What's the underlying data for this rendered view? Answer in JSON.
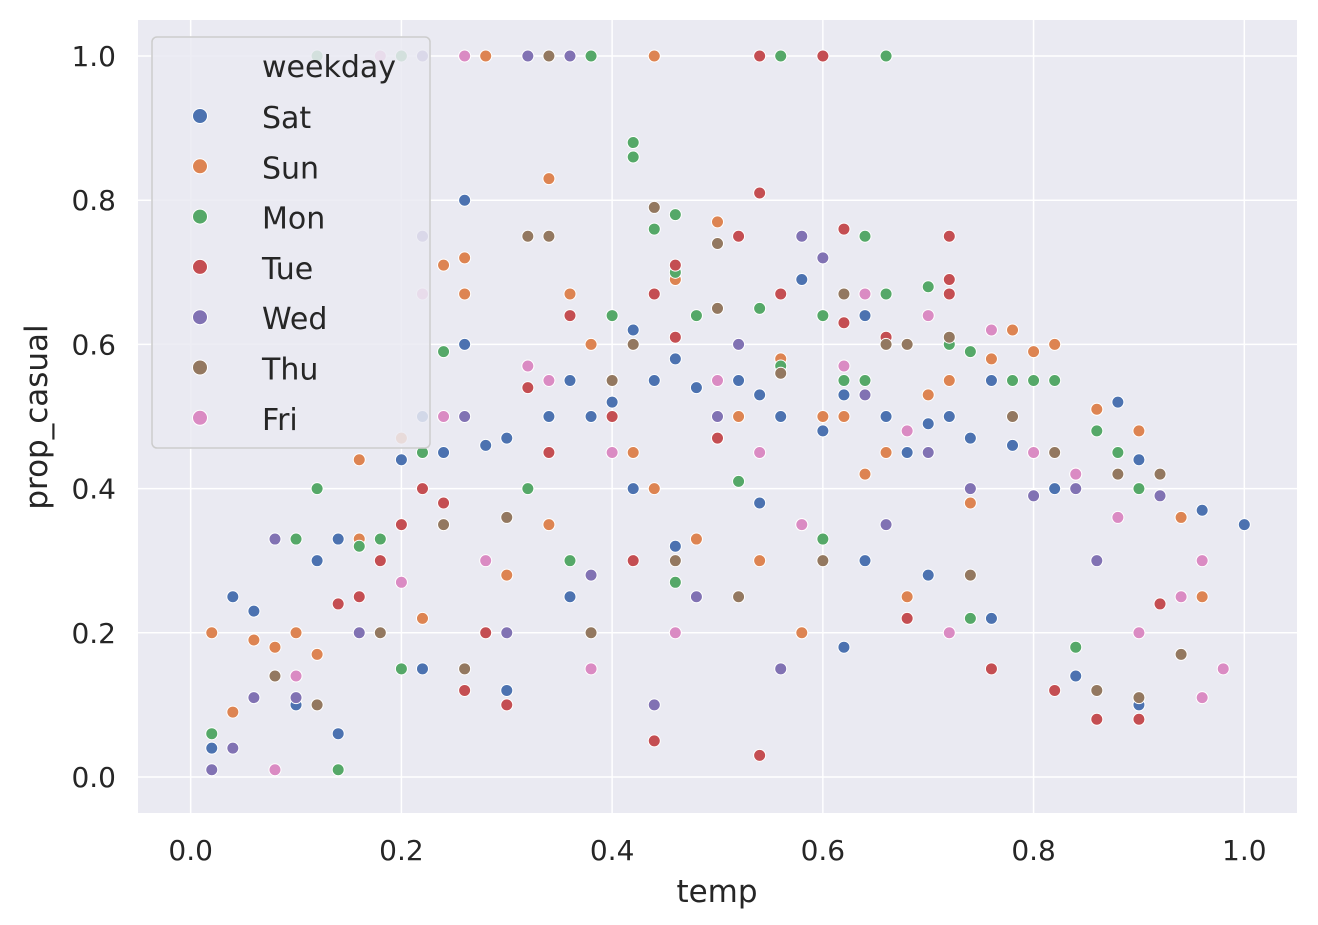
{
  "chart_data": {
    "type": "scatter",
    "title": "",
    "xlabel": "temp",
    "ylabel": "prop_casual",
    "xlim": [
      -0.05,
      1.05
    ],
    "ylim": [
      -0.05,
      1.05
    ],
    "xticks": [
      "0.0",
      "0.2",
      "0.4",
      "0.6",
      "0.8",
      "1.0"
    ],
    "xtick_values": [
      0,
      0.2,
      0.4,
      0.6,
      0.8,
      1.0
    ],
    "yticks": [
      "0.0",
      "0.2",
      "0.4",
      "0.6",
      "0.8",
      "1.0"
    ],
    "ytick_values": [
      0,
      0.2,
      0.4,
      0.6,
      0.8,
      1.0
    ],
    "grid": true,
    "legend": {
      "title": "weekday",
      "placement": "upper-left",
      "entries": [
        "Sat",
        "Sun",
        "Mon",
        "Tue",
        "Wed",
        "Thu",
        "Fri"
      ]
    },
    "series": [
      {
        "name": "Sat",
        "color": "#4c72b0",
        "x": [
          0.02,
          0.04,
          0.06,
          0.12,
          0.14,
          0.2,
          0.22,
          0.24,
          0.26,
          0.26,
          0.28,
          0.3,
          0.32,
          0.34,
          0.36,
          0.38,
          0.4,
          0.42,
          0.44,
          0.46,
          0.48,
          0.5,
          0.52,
          0.54,
          0.56,
          0.58,
          0.6,
          0.62,
          0.64,
          0.66,
          0.68,
          0.7,
          0.72,
          0.74,
          0.76,
          0.78,
          0.8,
          0.82,
          0.84,
          0.86,
          0.88,
          0.9,
          0.94,
          0.96,
          1.0,
          0.58,
          0.64,
          0.42,
          0.36,
          0.22,
          0.1,
          0.14,
          0.3,
          0.46,
          0.54,
          0.62,
          0.7,
          0.76,
          0.84,
          0.9
        ],
        "y": [
          0.04,
          0.25,
          0.23,
          0.3,
          0.33,
          0.44,
          0.5,
          0.45,
          0.8,
          0.6,
          0.46,
          0.47,
          0.57,
          0.5,
          0.55,
          0.5,
          0.52,
          0.62,
          0.55,
          0.58,
          0.54,
          0.47,
          0.55,
          0.53,
          0.5,
          0.69,
          0.48,
          0.53,
          0.64,
          0.5,
          0.45,
          0.49,
          0.5,
          0.47,
          0.55,
          0.46,
          0.45,
          0.4,
          0.42,
          0.51,
          0.52,
          0.44,
          0.36,
          0.37,
          0.35,
          0.2,
          0.3,
          0.4,
          0.25,
          0.15,
          0.1,
          0.06,
          0.12,
          0.32,
          0.38,
          0.18,
          0.28,
          0.22,
          0.14,
          0.1
        ]
      },
      {
        "name": "Sun",
        "color": "#dd8452",
        "x": [
          0.02,
          0.04,
          0.06,
          0.1,
          0.16,
          0.2,
          0.24,
          0.26,
          0.26,
          0.28,
          0.34,
          0.36,
          0.38,
          0.44,
          0.46,
          0.5,
          0.52,
          0.56,
          0.6,
          0.62,
          0.66,
          0.7,
          0.72,
          0.76,
          0.78,
          0.8,
          0.82,
          0.86,
          0.9,
          0.94,
          0.96,
          0.44,
          0.34,
          0.22,
          0.3,
          0.42,
          0.54,
          0.64,
          0.74,
          0.68,
          0.58,
          0.48,
          0.16,
          0.12,
          0.08
        ],
        "y": [
          0.2,
          0.09,
          0.19,
          0.2,
          0.44,
          0.47,
          0.71,
          0.72,
          0.67,
          1.0,
          0.83,
          0.67,
          0.6,
          1.0,
          0.69,
          0.77,
          0.5,
          0.58,
          0.5,
          0.5,
          0.45,
          0.53,
          0.55,
          0.58,
          0.62,
          0.59,
          0.6,
          0.51,
          0.48,
          0.36,
          0.25,
          0.4,
          0.35,
          0.22,
          0.28,
          0.45,
          0.3,
          0.42,
          0.38,
          0.25,
          0.2,
          0.33,
          0.33,
          0.17,
          0.18
        ]
      },
      {
        "name": "Mon",
        "color": "#55a868",
        "x": [
          0.02,
          0.1,
          0.12,
          0.12,
          0.16,
          0.18,
          0.2,
          0.22,
          0.24,
          0.38,
          0.4,
          0.42,
          0.42,
          0.44,
          0.46,
          0.46,
          0.48,
          0.54,
          0.56,
          0.6,
          0.62,
          0.64,
          0.66,
          0.66,
          0.7,
          0.72,
          0.74,
          0.78,
          0.8,
          0.82,
          0.86,
          0.88,
          0.9,
          0.56,
          0.64,
          0.52,
          0.36,
          0.28,
          0.2,
          0.32,
          0.46,
          0.6,
          0.74,
          0.84,
          0.14
        ],
        "y": [
          0.06,
          0.33,
          0.4,
          1.0,
          0.32,
          0.33,
          1.0,
          0.45,
          0.59,
          1.0,
          0.64,
          0.88,
          0.86,
          0.76,
          0.78,
          0.7,
          0.64,
          0.65,
          1.0,
          0.64,
          0.55,
          0.75,
          1.0,
          0.67,
          0.68,
          0.6,
          0.59,
          0.55,
          0.55,
          0.55,
          0.48,
          0.45,
          0.4,
          0.57,
          0.55,
          0.41,
          0.3,
          0.2,
          0.15,
          0.4,
          0.27,
          0.33,
          0.22,
          0.18,
          0.01
        ]
      },
      {
        "name": "Tue",
        "color": "#c44e52",
        "x": [
          0.14,
          0.16,
          0.18,
          0.22,
          0.24,
          0.28,
          0.32,
          0.36,
          0.44,
          0.46,
          0.46,
          0.52,
          0.54,
          0.54,
          0.56,
          0.62,
          0.62,
          0.66,
          0.72,
          0.72,
          0.72,
          0.6,
          0.5,
          0.4,
          0.34,
          0.3,
          0.42,
          0.58,
          0.68,
          0.76,
          0.82,
          0.86,
          0.9,
          0.92,
          0.54,
          0.44,
          0.26,
          0.2
        ],
        "y": [
          0.24,
          0.25,
          0.3,
          0.4,
          0.38,
          0.2,
          0.54,
          0.64,
          0.67,
          0.71,
          0.61,
          0.75,
          0.81,
          1.0,
          0.67,
          0.76,
          0.63,
          0.61,
          0.75,
          0.69,
          0.67,
          1.0,
          0.47,
          0.5,
          0.45,
          0.1,
          0.3,
          0.35,
          0.22,
          0.15,
          0.12,
          0.08,
          0.08,
          0.24,
          0.03,
          0.05,
          0.12,
          0.35
        ]
      },
      {
        "name": "Wed",
        "color": "#8172b3",
        "x": [
          0.02,
          0.04,
          0.06,
          0.08,
          0.1,
          0.22,
          0.32,
          0.36,
          0.4,
          0.5,
          0.52,
          0.58,
          0.6,
          0.64,
          0.7,
          0.74,
          0.8,
          0.84,
          0.86,
          0.92,
          0.22,
          0.16,
          0.48,
          0.56,
          0.66,
          0.38,
          0.26,
          0.3,
          0.44
        ],
        "y": [
          0.01,
          0.04,
          0.11,
          0.33,
          0.11,
          0.75,
          1.0,
          1.0,
          0.55,
          0.5,
          0.6,
          0.75,
          0.72,
          0.53,
          0.45,
          0.4,
          0.39,
          0.4,
          0.3,
          0.39,
          1.0,
          0.2,
          0.25,
          0.15,
          0.35,
          0.28,
          0.5,
          0.2,
          0.1
        ]
      },
      {
        "name": "Thu",
        "color": "#937860",
        "x": [
          0.08,
          0.12,
          0.18,
          0.24,
          0.32,
          0.34,
          0.34,
          0.4,
          0.42,
          0.44,
          0.5,
          0.5,
          0.56,
          0.62,
          0.66,
          0.68,
          0.72,
          0.78,
          0.82,
          0.88,
          0.92,
          0.94,
          0.46,
          0.52,
          0.38,
          0.3,
          0.26,
          0.6,
          0.74,
          0.86,
          0.9
        ],
        "y": [
          0.14,
          0.1,
          0.2,
          0.35,
          0.75,
          1.0,
          0.75,
          0.55,
          0.6,
          0.79,
          0.74,
          0.65,
          0.56,
          0.67,
          0.6,
          0.6,
          0.61,
          0.5,
          0.45,
          0.42,
          0.42,
          0.17,
          0.3,
          0.25,
          0.2,
          0.36,
          0.15,
          0.3,
          0.28,
          0.12,
          0.11
        ]
      },
      {
        "name": "Fri",
        "color": "#da8bc3",
        "x": [
          0.08,
          0.1,
          0.18,
          0.22,
          0.24,
          0.26,
          0.32,
          0.34,
          0.4,
          0.5,
          0.54,
          0.62,
          0.64,
          0.7,
          0.76,
          0.8,
          0.84,
          0.88,
          0.9,
          0.94,
          0.96,
          0.98,
          0.96,
          0.58,
          0.68,
          0.46,
          0.38,
          0.28,
          0.2,
          0.72
        ],
        "y": [
          0.01,
          0.14,
          1.0,
          0.67,
          0.5,
          1.0,
          0.57,
          0.55,
          0.45,
          0.55,
          0.45,
          0.57,
          0.67,
          0.64,
          0.62,
          0.45,
          0.42,
          0.36,
          0.2,
          0.25,
          0.11,
          0.15,
          0.3,
          0.35,
          0.48,
          0.2,
          0.15,
          0.3,
          0.27,
          0.2
        ]
      }
    ]
  }
}
